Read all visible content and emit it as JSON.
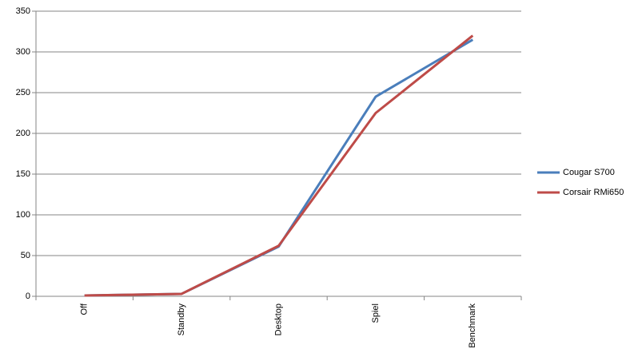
{
  "chart_data": {
    "type": "line",
    "categories": [
      "Off",
      "Standby",
      "Desktop",
      "Spiel",
      "Benchmark"
    ],
    "series": [
      {
        "name": "Cougar S700",
        "color": "#4a7ebb",
        "values": [
          1,
          3,
          61,
          245,
          315
        ]
      },
      {
        "name": "Corsair RMi650",
        "color": "#be4b48",
        "values": [
          1,
          3,
          62,
          225,
          320
        ]
      }
    ],
    "ylim": [
      0,
      350
    ],
    "yticks": [
      0,
      50,
      100,
      150,
      200,
      250,
      300,
      350
    ],
    "grid": true,
    "legend": "right"
  }
}
